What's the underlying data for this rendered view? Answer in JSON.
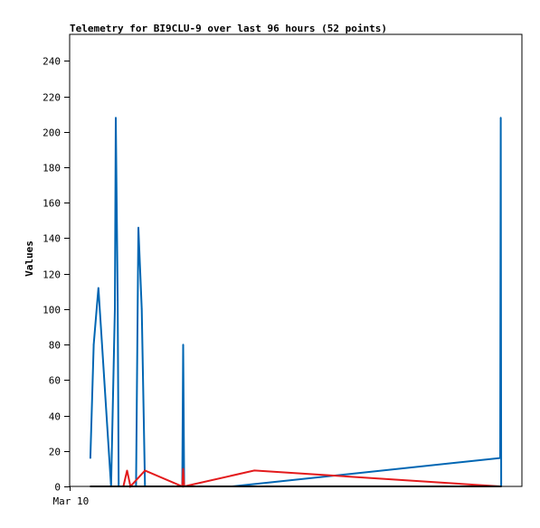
{
  "chart_data": {
    "type": "line",
    "title": "Telemetry for BI9CLU-9 over last 96 hours (52 points)",
    "ylabel": "Values",
    "xlabel": "",
    "ylim": [
      0,
      255
    ],
    "yticks": [
      0,
      20,
      40,
      60,
      80,
      100,
      120,
      140,
      160,
      180,
      200,
      220,
      240
    ],
    "xlim": [
      0,
      96
    ],
    "xticks": [
      {
        "x": 0,
        "label": "Mar 10"
      }
    ],
    "grid": false,
    "legend": "none",
    "series": [
      {
        "color": "#0066b3",
        "points": [
          [
            4.4,
            16
          ],
          [
            5.1,
            80
          ],
          [
            6.1,
            112
          ],
          [
            8.8,
            0
          ],
          [
            9.6,
            100
          ],
          [
            9.8,
            208
          ],
          [
            10.2,
            105
          ],
          [
            10.4,
            0
          ],
          [
            14.1,
            0
          ],
          [
            14.6,
            146
          ],
          [
            15.3,
            100
          ],
          [
            16.0,
            0
          ],
          [
            23.9,
            0
          ],
          [
            24.1,
            80
          ],
          [
            24.3,
            0
          ],
          [
            34.5,
            0
          ],
          [
            91.4,
            16
          ],
          [
            91.5,
            208
          ],
          [
            91.6,
            0
          ]
        ]
      },
      {
        "color": "#e31a1c",
        "points": [
          [
            11.4,
            0
          ],
          [
            12.2,
            9
          ],
          [
            12.9,
            0
          ],
          [
            16.0,
            9
          ],
          [
            23.9,
            0
          ],
          [
            24.1,
            10
          ],
          [
            24.3,
            0
          ],
          [
            39.2,
            9
          ],
          [
            91.4,
            0
          ]
        ]
      },
      {
        "color": "#000000",
        "points": [
          [
            4.4,
            0
          ],
          [
            91.6,
            0
          ]
        ]
      }
    ]
  }
}
